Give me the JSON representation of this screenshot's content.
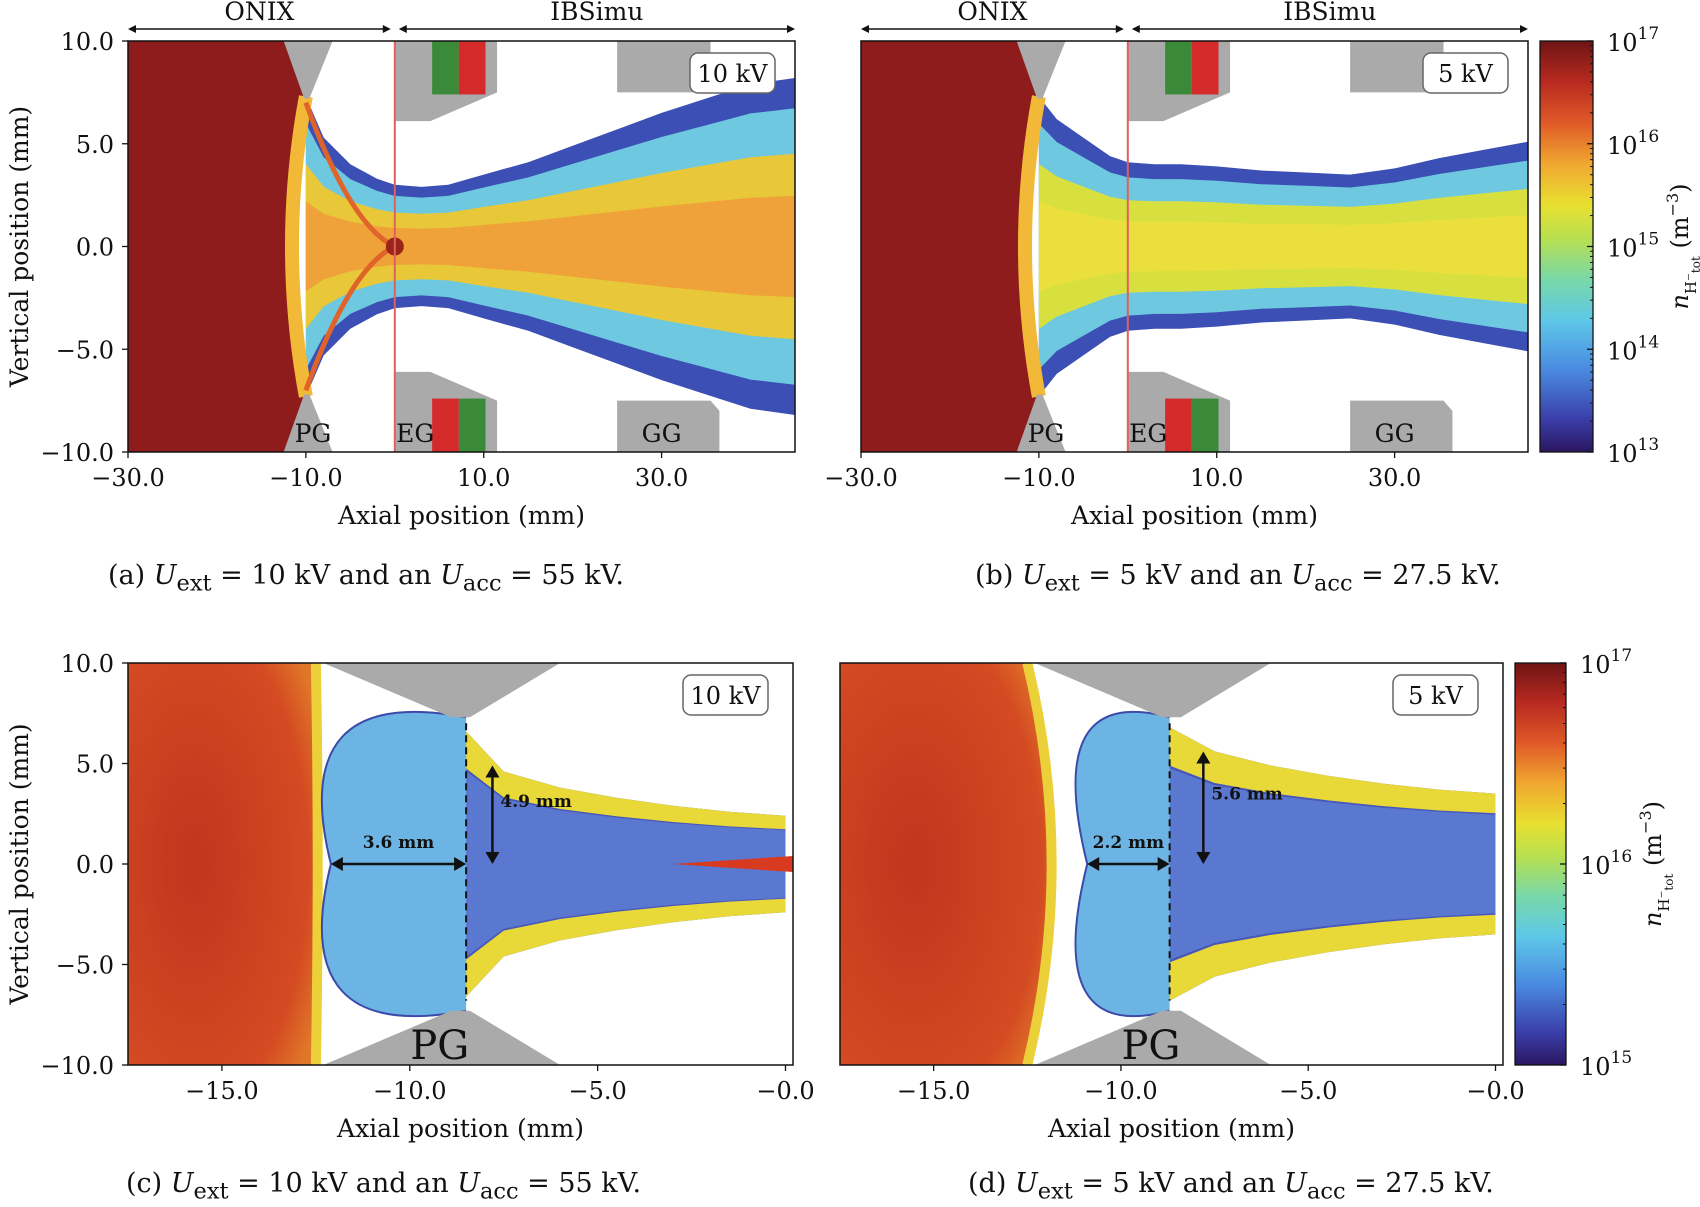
{
  "chart_data": [
    {
      "type": "heatmap",
      "panel_tag": "(a)",
      "xlabel": "Axial position (mm)",
      "ylabel": "Vertical position (mm)",
      "xlim": [
        -30,
        45
      ],
      "ylim": [
        -10,
        10
      ],
      "x_ticks": [
        "−30.0",
        "−10.0",
        "10.0",
        "30.0"
      ],
      "x_tick_values": [
        -30,
        -10,
        10,
        30
      ],
      "y_ticks": [
        "10.0",
        "5.0",
        "0.0",
        "−5.0",
        "−10.0"
      ],
      "y_tick_values": [
        10,
        5,
        0,
        -5,
        -10
      ],
      "region_labels": [
        "ONIX",
        "IBSimu"
      ],
      "region_ranges": [
        [
          -30,
          0
        ],
        [
          0,
          45
        ]
      ],
      "electrode_labels": [
        "PG",
        "EG",
        "GG"
      ],
      "badge": "10 kV",
      "beam_profile": {
        "x": [
          -10,
          -8,
          -5,
          -2,
          0,
          3,
          6,
          10,
          15,
          20,
          25,
          30,
          35,
          40,
          45
        ],
        "half_width": [
          7.3,
          5.3,
          4.0,
          3.3,
          3.0,
          2.9,
          3.0,
          3.5,
          4.1,
          4.9,
          5.7,
          6.5,
          7.2,
          7.9,
          8.2
        ]
      },
      "caption": {
        "prefix": "(a) ",
        "u1": "U",
        "s1": "ext",
        "mid": " = 10 kV and an ",
        "u2": "U",
        "s2": "acc",
        "end": " = 55 kV."
      }
    },
    {
      "type": "heatmap",
      "panel_tag": "(b)",
      "xlabel": "Axial position (mm)",
      "ylabel": "",
      "xlim": [
        -30,
        45
      ],
      "ylim": [
        -10,
        10
      ],
      "x_ticks": [
        "−30.0",
        "−10.0",
        "10.0",
        "30.0"
      ],
      "x_tick_values": [
        -30,
        -10,
        10,
        30
      ],
      "region_labels": [
        "ONIX",
        "IBSimu"
      ],
      "region_ranges": [
        [
          -30,
          0
        ],
        [
          0,
          45
        ]
      ],
      "electrode_labels": [
        "PG",
        "EG",
        "GG"
      ],
      "badge": "5 kV",
      "beam_profile": {
        "x": [
          -10,
          -8,
          -5,
          -2,
          0,
          3,
          6,
          10,
          15,
          20,
          25,
          30,
          35,
          40,
          45
        ],
        "half_width": [
          7.3,
          6.2,
          5.3,
          4.4,
          4.1,
          4.0,
          4.0,
          3.9,
          3.7,
          3.6,
          3.5,
          3.8,
          4.3,
          4.7,
          5.1
        ]
      },
      "colorbar": {
        "scale": "log",
        "label": "n",
        "label_sub": "H⁻",
        "label_subsub": "tot",
        "label_unit": " (m",
        "label_exp": "−3",
        "label_close": ")",
        "ticks": [
          {
            "base": "10",
            "exp": "17"
          },
          {
            "base": "10",
            "exp": "16"
          },
          {
            "base": "10",
            "exp": "15"
          },
          {
            "base": "10",
            "exp": "14"
          },
          {
            "base": "10",
            "exp": "13"
          }
        ],
        "range": [
          13,
          17
        ]
      },
      "caption": {
        "prefix": "(b) ",
        "u1": "U",
        "s1": "ext",
        "mid": " = 5 kV and an ",
        "u2": "U",
        "s2": "acc",
        "end": " = 27.5 kV."
      }
    },
    {
      "type": "heatmap",
      "panel_tag": "(c)",
      "xlabel": "Axial position (mm)",
      "ylabel": "Vertical position (mm)",
      "xlim": [
        -17.5,
        0.2
      ],
      "ylim": [
        -10,
        10
      ],
      "x_ticks": [
        "−15.0",
        "−10.0",
        "−5.0",
        "−0.0"
      ],
      "x_tick_values": [
        -15,
        -10,
        -5,
        0
      ],
      "y_ticks": [
        "10.0",
        "5.0",
        "0.0",
        "−5.0",
        "−10.0"
      ],
      "y_tick_values": [
        10,
        5,
        0,
        -5,
        -10
      ],
      "electrode_labels": [
        "PG"
      ],
      "badge": "10 kV",
      "annotations": [
        {
          "text": "3.6 mm",
          "x1": -12.1,
          "x2": -8.5,
          "y": 0
        },
        {
          "text": "4.9 mm",
          "x": -7.8,
          "y1": 4.9,
          "y2": 0
        }
      ],
      "beam_profile": {
        "x": [
          -8.5,
          -7.5,
          -6,
          -4.5,
          -3,
          -1.5,
          0
        ],
        "half_width": [
          6.6,
          4.6,
          3.8,
          3.3,
          2.9,
          2.6,
          2.4
        ]
      },
      "caption": {
        "prefix": "(c) ",
        "u1": "U",
        "s1": "ext",
        "mid": " = 10 kV and an ",
        "u2": "U",
        "s2": "acc",
        "end": " = 55 kV."
      }
    },
    {
      "type": "heatmap",
      "panel_tag": "(d)",
      "xlabel": "Axial position (mm)",
      "ylabel": "",
      "xlim": [
        -17.5,
        0.2
      ],
      "ylim": [
        -10,
        10
      ],
      "x_ticks": [
        "−15.0",
        "−10.0",
        "−5.0",
        "−0.0"
      ],
      "x_tick_values": [
        -15,
        -10,
        -5,
        0
      ],
      "electrode_labels": [
        "PG"
      ],
      "badge": "5 kV",
      "annotations": [
        {
          "text": "2.2 mm",
          "x1": -10.9,
          "x2": -8.7,
          "y": 0
        },
        {
          "text": "5.6 mm",
          "x": -7.8,
          "y1": 5.6,
          "y2": 0
        }
      ],
      "beam_profile": {
        "x": [
          -8.7,
          -7.5,
          -6,
          -4.5,
          -3,
          -1.5,
          0
        ],
        "half_width": [
          6.8,
          5.6,
          4.9,
          4.4,
          4.0,
          3.7,
          3.5
        ]
      },
      "colorbar": {
        "scale": "log",
        "label": "n",
        "label_sub": "H⁻",
        "label_subsub": "tot",
        "label_unit": " (m",
        "label_exp": "−3",
        "label_close": ")",
        "ticks": [
          {
            "base": "10",
            "exp": "17"
          },
          {
            "base": "10",
            "exp": "16"
          },
          {
            "base": "10",
            "exp": "15"
          }
        ],
        "range": [
          15,
          17
        ]
      },
      "caption": {
        "prefix": "(d) ",
        "u1": "U",
        "s1": "ext",
        "mid": " = 5 kV and an ",
        "u2": "U",
        "s2": "acc",
        "end": " = 27.5 kV."
      }
    }
  ],
  "colors": {
    "plasma": "#8e1c1c",
    "electrode": "#aaaaaa",
    "eg_green": "#3a8a3a",
    "eg_red": "#d42a2a",
    "divider": "#e06060",
    "meniscus": "#3b4aa8"
  }
}
